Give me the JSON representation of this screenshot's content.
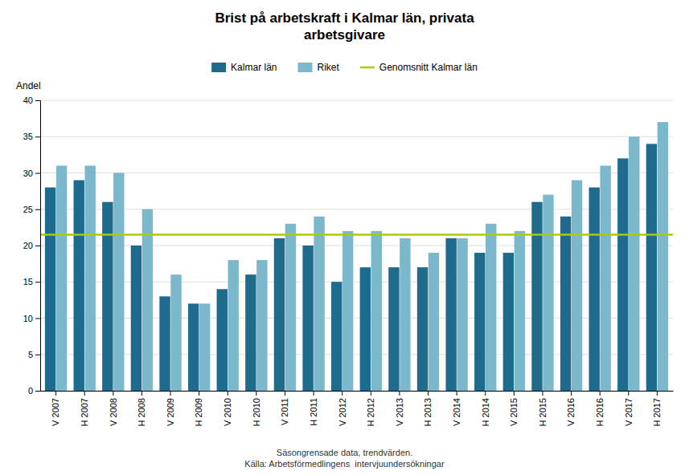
{
  "chart_data": {
    "type": "bar",
    "title": "Brist på arbetskraft i Kalmar län, privata\narbetsgivare",
    "ylabel": "Andel",
    "note": "Säsongrensade data, trendvärden.\nKälla: Arbetsförmedlingens  intervjuundersökningar",
    "categories": [
      "V 2007",
      "H 2007",
      "V 2008",
      "H 2008",
      "V 2009",
      "H 2009",
      "V 2010",
      "H 2010",
      "V 2011",
      "H 2011",
      "V 2012",
      "H 2012",
      "V 2013",
      "H 2013",
      "V 2014",
      "H 2014",
      "V 2015",
      "H 2015",
      "V 2016",
      "H 2016",
      "V 2017",
      "H 2017"
    ],
    "series": [
      {
        "name": "Kalmar län",
        "color": "#1F6B8E",
        "values": [
          28,
          29,
          26,
          20,
          13,
          12,
          14,
          16,
          21,
          20,
          15,
          17,
          17,
          17,
          21,
          19,
          19,
          26,
          24,
          28,
          32,
          34
        ]
      },
      {
        "name": "Riket",
        "color": "#7BB8CC",
        "values": [
          31,
          31,
          30,
          25,
          16,
          12,
          18,
          18,
          23,
          24,
          22,
          22,
          21,
          19,
          21,
          23,
          22,
          27,
          29,
          31,
          35,
          37
        ]
      }
    ],
    "lines": [
      {
        "name": "Genomsnitt Kalmar län",
        "color": "#AACC00",
        "value": 21.5
      }
    ],
    "ylim": [
      0,
      40
    ],
    "yticks": [
      0,
      5,
      10,
      15,
      20,
      25,
      30,
      35,
      40
    ],
    "grid": true
  }
}
